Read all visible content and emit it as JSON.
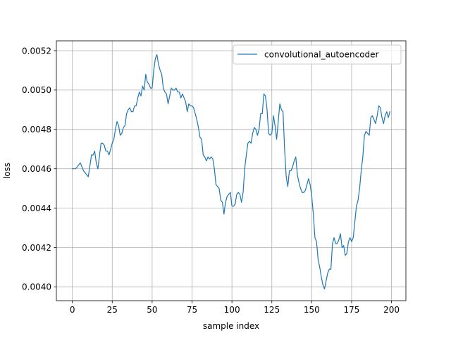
{
  "chart_data": {
    "type": "line",
    "title": "",
    "xlabel": "sample index",
    "ylabel": "loss",
    "xlim": [
      -10,
      209
    ],
    "ylim": [
      0.00393,
      0.00525
    ],
    "xticks": [
      0,
      25,
      50,
      75,
      100,
      125,
      150,
      175,
      200
    ],
    "yticks": [
      0.004,
      0.0042,
      0.0044,
      0.0046,
      0.0048,
      0.005,
      0.0052
    ],
    "ytick_labels": [
      "0.0040",
      "0.0042",
      "0.0044",
      "0.0046",
      "0.0048",
      "0.0050",
      "0.0052"
    ],
    "grid": true,
    "legend_position": "top-right",
    "series": [
      {
        "name": "convolutional_autoencoder",
        "color": "#1f77b4",
        "points": [
          [
            0,
            0.0046
          ],
          [
            2,
            0.0046
          ],
          [
            4,
            0.00462
          ],
          [
            5,
            0.00463
          ],
          [
            7,
            0.00459
          ],
          [
            9,
            0.00457
          ],
          [
            10,
            0.00456
          ],
          [
            12,
            0.00467
          ],
          [
            13,
            0.00467
          ],
          [
            14,
            0.00469
          ],
          [
            15,
            0.00463
          ],
          [
            16,
            0.0046
          ],
          [
            18,
            0.00473
          ],
          [
            19,
            0.00473
          ],
          [
            20,
            0.00472
          ],
          [
            21,
            0.00469
          ],
          [
            22,
            0.00469
          ],
          [
            23,
            0.00467
          ],
          [
            25,
            0.00473
          ],
          [
            26,
            0.00475
          ],
          [
            27,
            0.0048
          ],
          [
            28,
            0.00484
          ],
          [
            29,
            0.00482
          ],
          [
            30,
            0.00477
          ],
          [
            31,
            0.00478
          ],
          [
            32,
            0.00481
          ],
          [
            33,
            0.00482
          ],
          [
            34,
            0.00488
          ],
          [
            35,
            0.0049
          ],
          [
            36,
            0.00491
          ],
          [
            37,
            0.00489
          ],
          [
            38,
            0.00489
          ],
          [
            39,
            0.00492
          ],
          [
            40,
            0.00492
          ],
          [
            41,
            0.00496
          ],
          [
            42,
            0.00499
          ],
          [
            43,
            0.00497
          ],
          [
            44,
            0.00502
          ],
          [
            45,
            0.005
          ],
          [
            46,
            0.00508
          ],
          [
            47,
            0.00504
          ],
          [
            48,
            0.00503
          ],
          [
            49,
            0.00501
          ],
          [
            50,
            0.00501
          ],
          [
            51,
            0.0051
          ],
          [
            52,
            0.00516
          ],
          [
            53,
            0.00518
          ],
          [
            54,
            0.00513
          ],
          [
            55,
            0.0051
          ],
          [
            56,
            0.00508
          ],
          [
            57,
            0.00501
          ],
          [
            58,
            0.00499
          ],
          [
            59,
            0.00498
          ],
          [
            60,
            0.00493
          ],
          [
            61,
            0.00497
          ],
          [
            62,
            0.00501
          ],
          [
            63,
            0.005
          ],
          [
            64,
            0.005
          ],
          [
            65,
            0.00501
          ],
          [
            66,
            0.00499
          ],
          [
            67,
            0.00499
          ],
          [
            68,
            0.00496
          ],
          [
            69,
            0.00498
          ],
          [
            70,
            0.00496
          ],
          [
            71,
            0.00494
          ],
          [
            72,
            0.00489
          ],
          [
            73,
            0.00493
          ],
          [
            74,
            0.00492
          ],
          [
            75,
            0.00492
          ],
          [
            76,
            0.00491
          ],
          [
            77,
            0.00488
          ],
          [
            78,
            0.00485
          ],
          [
            79,
            0.00481
          ],
          [
            80,
            0.00476
          ],
          [
            81,
            0.00475
          ],
          [
            82,
            0.00467
          ],
          [
            83,
            0.00466
          ],
          [
            84,
            0.00464
          ],
          [
            85,
            0.00466
          ],
          [
            86,
            0.00465
          ],
          [
            87,
            0.00466
          ],
          [
            88,
            0.00465
          ],
          [
            89,
            0.0046
          ],
          [
            90,
            0.00452
          ],
          [
            91,
            0.00451
          ],
          [
            92,
            0.0045
          ],
          [
            93,
            0.00444
          ],
          [
            94,
            0.00443
          ],
          [
            95,
            0.00437
          ],
          [
            96,
            0.00443
          ],
          [
            97,
            0.00446
          ],
          [
            98,
            0.00447
          ],
          [
            99,
            0.00448
          ],
          [
            100,
            0.00441
          ],
          [
            101,
            0.00441
          ],
          [
            102,
            0.00442
          ],
          [
            103,
            0.00447
          ],
          [
            104,
            0.00448
          ],
          [
            105,
            0.00447
          ],
          [
            106,
            0.00443
          ],
          [
            107,
            0.00448
          ],
          [
            108,
            0.0046
          ],
          [
            109,
            0.00467
          ],
          [
            110,
            0.00473
          ],
          [
            111,
            0.00474
          ],
          [
            112,
            0.00473
          ],
          [
            113,
            0.00478
          ],
          [
            114,
            0.00481
          ],
          [
            115,
            0.0048
          ],
          [
            116,
            0.00477
          ],
          [
            117,
            0.0048
          ],
          [
            118,
            0.00488
          ],
          [
            119,
            0.00488
          ],
          [
            120,
            0.00498
          ],
          [
            121,
            0.00497
          ],
          [
            122,
            0.0049
          ],
          [
            123,
            0.00478
          ],
          [
            124,
            0.00477
          ],
          [
            125,
            0.00478
          ],
          [
            126,
            0.00487
          ],
          [
            127,
            0.00482
          ],
          [
            128,
            0.00475
          ],
          [
            129,
            0.00484
          ],
          [
            130,
            0.00493
          ],
          [
            131,
            0.0049
          ],
          [
            132,
            0.00489
          ],
          [
            133,
            0.0047
          ],
          [
            134,
            0.00456
          ],
          [
            135,
            0.00451
          ],
          [
            136,
            0.00459
          ],
          [
            137,
            0.00459
          ],
          [
            138,
            0.00461
          ],
          [
            139,
            0.00464
          ],
          [
            140,
            0.00466
          ],
          [
            141,
            0.00457
          ],
          [
            142,
            0.00453
          ],
          [
            143,
            0.0045
          ],
          [
            144,
            0.00448
          ],
          [
            145,
            0.00448
          ],
          [
            146,
            0.00449
          ],
          [
            147,
            0.00452
          ],
          [
            148,
            0.00455
          ],
          [
            149,
            0.00452
          ],
          [
            150,
            0.00446
          ],
          [
            151,
            0.00437
          ],
          [
            152,
            0.00425
          ],
          [
            153,
            0.00423
          ],
          [
            154,
            0.00414
          ],
          [
            155,
            0.0041
          ],
          [
            156,
            0.00405
          ],
          [
            157,
            0.00401
          ],
          [
            158,
            0.00399
          ],
          [
            159,
            0.00403
          ],
          [
            160,
            0.00407
          ],
          [
            161,
            0.00409
          ],
          [
            162,
            0.00409
          ],
          [
            163,
            0.00422
          ],
          [
            164,
            0.00425
          ],
          [
            165,
            0.00422
          ],
          [
            166,
            0.00422
          ],
          [
            167,
            0.00424
          ],
          [
            168,
            0.00427
          ],
          [
            169,
            0.0042
          ],
          [
            170,
            0.00421
          ],
          [
            171,
            0.00416
          ],
          [
            172,
            0.00417
          ],
          [
            173,
            0.00423
          ],
          [
            174,
            0.00425
          ],
          [
            175,
            0.00423
          ],
          [
            176,
            0.00425
          ],
          [
            177,
            0.00433
          ],
          [
            178,
            0.00441
          ],
          [
            179,
            0.00444
          ],
          [
            180,
            0.0045
          ],
          [
            181,
            0.00459
          ],
          [
            182,
            0.00466
          ],
          [
            183,
            0.00477
          ],
          [
            184,
            0.00479
          ],
          [
            185,
            0.00478
          ],
          [
            186,
            0.00477
          ],
          [
            187,
            0.00486
          ],
          [
            188,
            0.00487
          ],
          [
            189,
            0.00485
          ],
          [
            190,
            0.00483
          ],
          [
            191,
            0.00487
          ],
          [
            192,
            0.00492
          ],
          [
            193,
            0.00491
          ],
          [
            194,
            0.00486
          ],
          [
            195,
            0.00483
          ],
          [
            196,
            0.00487
          ],
          [
            197,
            0.00489
          ],
          [
            198,
            0.00486
          ],
          [
            199,
            0.00489
          ]
        ]
      }
    ]
  }
}
